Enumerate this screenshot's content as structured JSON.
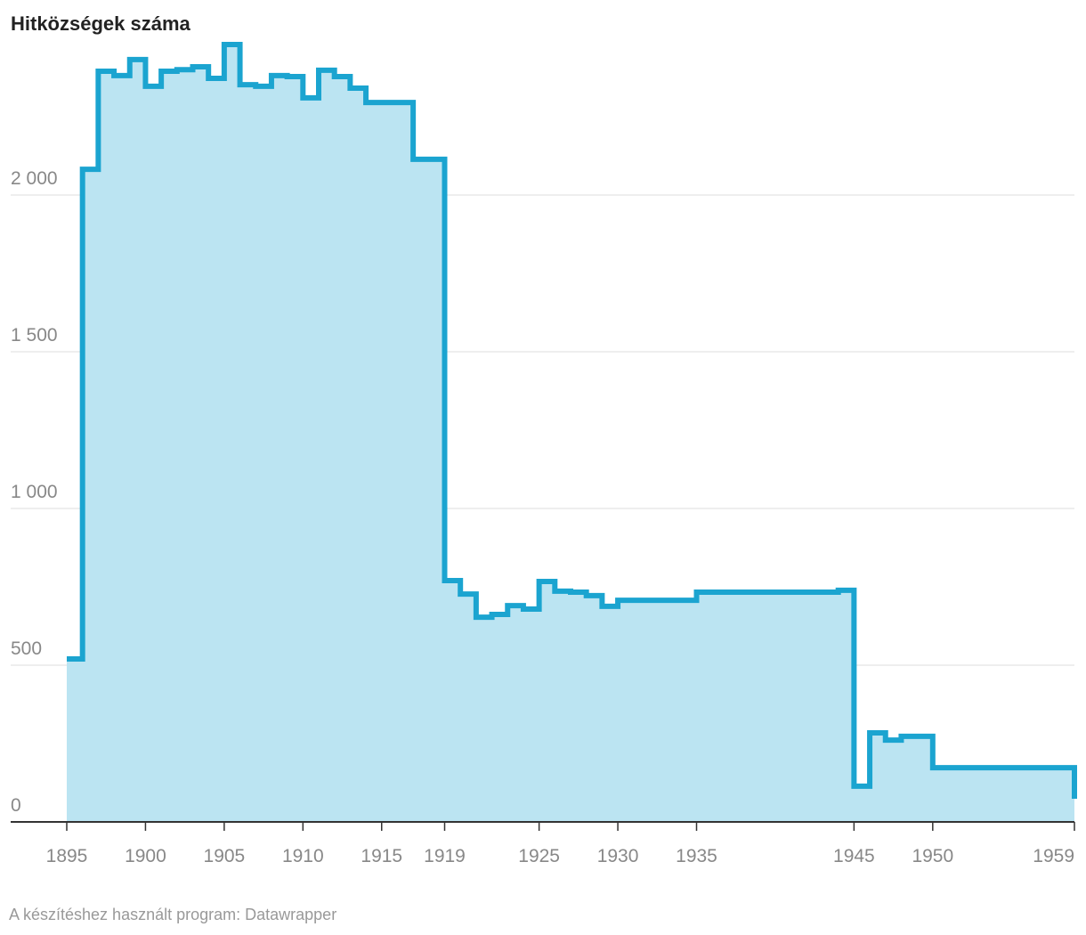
{
  "chart_data": {
    "type": "step-area",
    "title": "Hitközségek száma",
    "footer": "A készítéshez használt program: Datawrapper",
    "x": [
      1895,
      1896,
      1897,
      1898,
      1899,
      1900,
      1901,
      1902,
      1903,
      1904,
      1905,
      1906,
      1907,
      1908,
      1909,
      1910,
      1911,
      1912,
      1913,
      1914,
      1915,
      1916,
      1917,
      1918,
      1919,
      1920,
      1921,
      1922,
      1923,
      1924,
      1925,
      1926,
      1927,
      1928,
      1929,
      1930,
      1931,
      1932,
      1933,
      1934,
      1935,
      1936,
      1937,
      1938,
      1939,
      1940,
      1941,
      1942,
      1943,
      1944,
      1945,
      1946,
      1947,
      1948,
      1949,
      1950,
      1951,
      1952,
      1953,
      1954,
      1955,
      1956,
      1957,
      1958,
      1959
    ],
    "series": [
      {
        "name": "Hitközségek",
        "color": "#1ba4d0",
        "fill": "#bbe4f2",
        "values": [
          520,
          2082,
          2395,
          2381,
          2432,
          2347,
          2395,
          2400,
          2409,
          2372,
          2480,
          2352,
          2347,
          2381,
          2378,
          2310,
          2398,
          2378,
          2341,
          2295,
          2295,
          2295,
          2114,
          2114,
          770,
          727,
          653,
          662,
          690,
          679,
          767,
          736,
          733,
          722,
          688,
          707,
          707,
          707,
          707,
          707,
          733,
          733,
          733,
          733,
          733,
          733,
          733,
          733,
          733,
          739,
          114,
          284,
          261,
          273,
          273,
          173,
          173,
          173,
          173,
          173,
          173,
          173,
          173,
          173,
          74
        ]
      }
    ],
    "xlim": [
      1895,
      1959
    ],
    "xticks": [
      1895,
      1900,
      1905,
      1910,
      1915,
      1919,
      1925,
      1930,
      1935,
      1945,
      1950,
      1959
    ],
    "ylim": [
      0,
      2500
    ],
    "yticks": [
      0,
      500,
      {
        "value": 1000,
        "label": "1 000"
      },
      {
        "value": 1500,
        "label": "1 500"
      },
      {
        "value": 2000,
        "label": "2 000"
      }
    ],
    "grid": true
  }
}
